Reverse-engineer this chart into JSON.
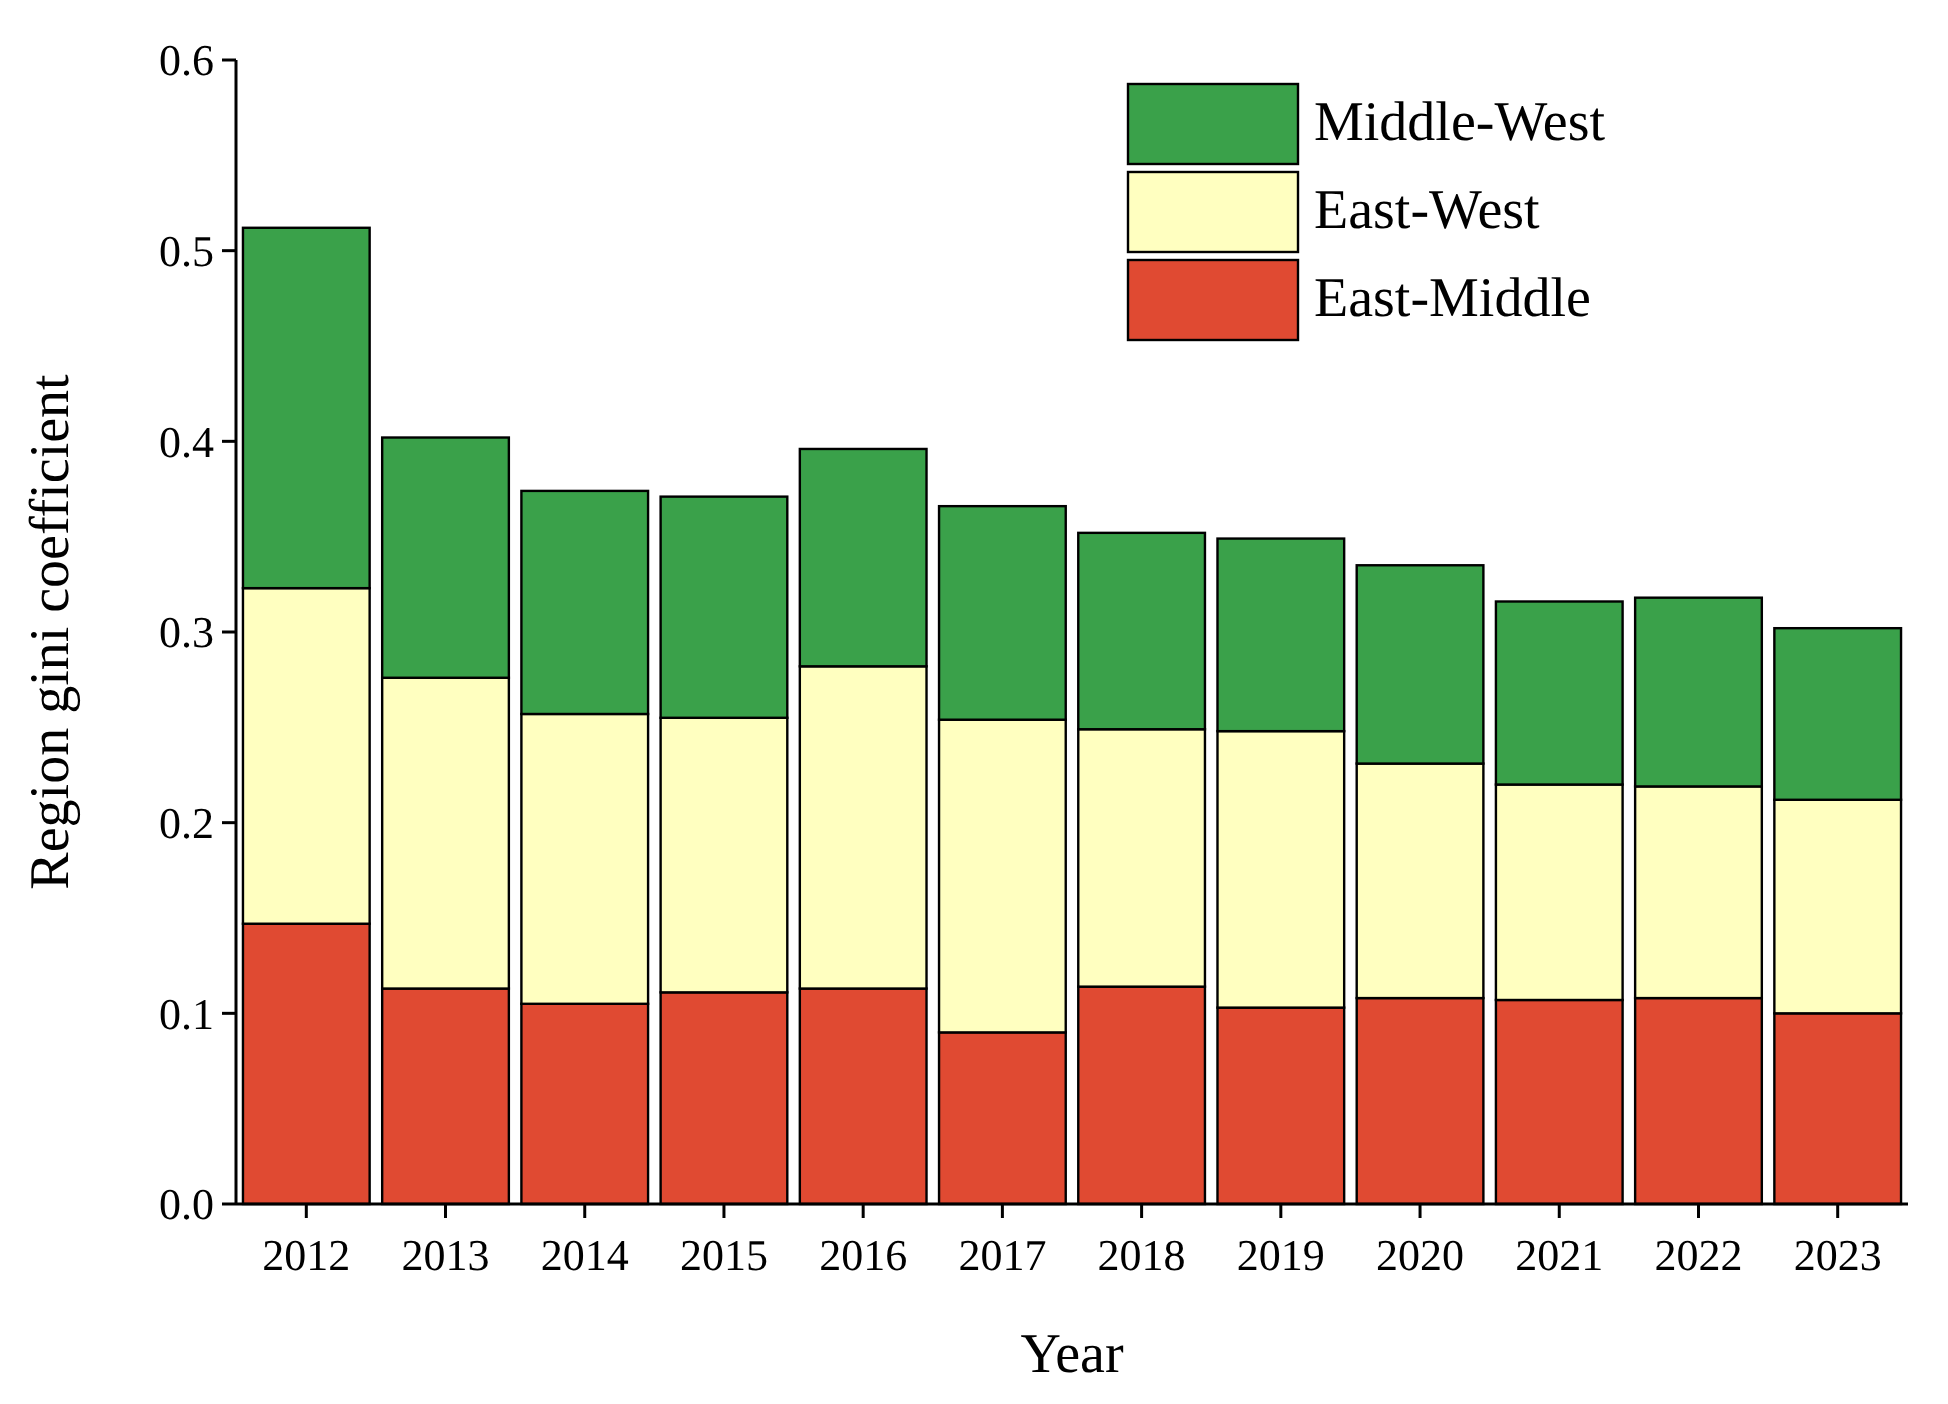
{
  "chart_data": {
    "type": "bar",
    "stacked": true,
    "xlabel": "Year",
    "ylabel": "Region gini coefficient",
    "categories": [
      "2012",
      "2013",
      "2014",
      "2015",
      "2016",
      "2017",
      "2018",
      "2019",
      "2020",
      "2021",
      "2022",
      "2023"
    ],
    "series": [
      {
        "name": "East-Middle",
        "color": "#e04a32",
        "values": [
          0.147,
          0.113,
          0.105,
          0.111,
          0.113,
          0.09,
          0.114,
          0.103,
          0.108,
          0.107,
          0.108,
          0.1
        ]
      },
      {
        "name": "East-West",
        "color": "#ffffc0",
        "values": [
          0.176,
          0.163,
          0.152,
          0.144,
          0.169,
          0.164,
          0.135,
          0.145,
          0.123,
          0.113,
          0.111,
          0.112
        ]
      },
      {
        "name": "Middle-West",
        "color": "#3aa14a",
        "values": [
          0.189,
          0.126,
          0.117,
          0.116,
          0.114,
          0.112,
          0.103,
          0.101,
          0.104,
          0.096,
          0.099,
          0.09
        ]
      }
    ],
    "ylim": [
      0,
      0.6
    ],
    "yticks": [
      {
        "value": 0,
        "label": "0.0"
      },
      {
        "value": 0.1,
        "label": "0.1"
      },
      {
        "value": 0.2,
        "label": "0.2"
      },
      {
        "value": 0.3,
        "label": "0.3"
      },
      {
        "value": 0.4,
        "label": "0.4"
      },
      {
        "value": 0.5,
        "label": "0.5"
      },
      {
        "value": 0.6,
        "label": "0.6"
      }
    ],
    "grid": false,
    "legend": "top right"
  }
}
